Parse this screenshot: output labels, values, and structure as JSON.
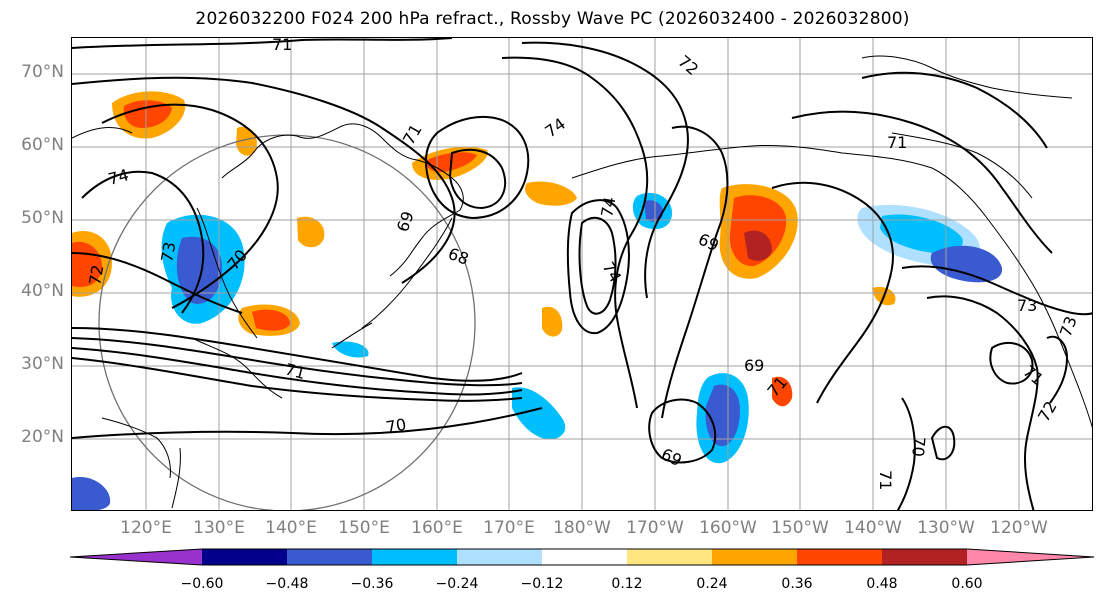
{
  "title": "2026032200 F024 200 hPa refract., Rossby Wave PC (2026032400 - 2026032800)",
  "lat_labels": [
    "70°N",
    "60°N",
    "50°N",
    "40°N",
    "30°N",
    "20°N"
  ],
  "lon_labels": [
    "120°E",
    "130°E",
    "140°E",
    "150°E",
    "160°E",
    "170°E",
    "180°W",
    "170°W",
    "160°W",
    "150°W",
    "140°W",
    "130°W",
    "120°W"
  ],
  "contour_labels": [
    "71",
    "72",
    "74",
    "71",
    "74",
    "69",
    "68",
    "74",
    "74",
    "69",
    "70",
    "71",
    "69",
    "69",
    "71",
    "70",
    "73",
    "72",
    "71",
    "73",
    "71",
    "70",
    "73",
    "71",
    "72"
  ],
  "colorbar": {
    "ticks": [
      "−0.60",
      "−0.48",
      "−0.36",
      "−0.24",
      "−0.12",
      "0.12",
      "0.24",
      "0.36",
      "0.48",
      "0.60"
    ],
    "colors": [
      "#9932cc",
      "#00008b",
      "#3a5bd0",
      "#00bfff",
      "#b0e0ff",
      "#ffffff",
      "#ffe680",
      "#ffa500",
      "#ff4500",
      "#b22222",
      "#ff88aa"
    ]
  },
  "shading_colors": {
    "neg_light": "#b0e0ff",
    "neg_mid": "#00bfff",
    "neg_strong": "#3a5bd0",
    "pos_light": "#ffe680",
    "pos_mid": "#ffa500",
    "pos_strong": "#ff4500",
    "pos_max": "#b22222"
  },
  "icons": {
    "range_ring": "circle"
  }
}
